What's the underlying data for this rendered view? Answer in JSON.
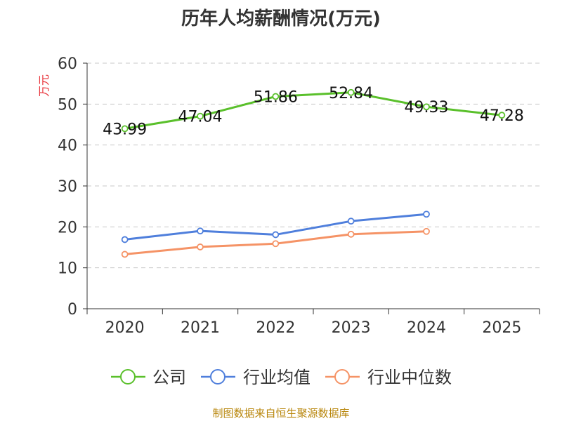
{
  "chart_data": {
    "type": "line",
    "title": "历年人均薪酬情况(万元)",
    "ylabel": "万元",
    "xlabel": "",
    "categories": [
      "2020",
      "2021",
      "2022",
      "2023",
      "2024",
      "2025"
    ],
    "ylim": [
      0,
      60
    ],
    "yticks": [
      0,
      10,
      20,
      30,
      40,
      50,
      60
    ],
    "grid": true,
    "legend_position": "bottom",
    "series": [
      {
        "name": "公司",
        "color": "#5ac02b",
        "values": [
          43.99,
          47.04,
          51.86,
          52.84,
          49.33,
          47.28
        ],
        "labels": [
          "43.99",
          "47.04",
          "51.86",
          "52.84",
          "49.33",
          "47.28"
        ]
      },
      {
        "name": "行业均值",
        "color": "#4f7fdc",
        "values": [
          16.9,
          19.0,
          18.1,
          21.4,
          23.1,
          null
        ],
        "labels": []
      },
      {
        "name": "行业中位数",
        "color": "#f59366",
        "values": [
          13.3,
          15.1,
          15.9,
          18.2,
          18.9,
          null
        ],
        "labels": []
      }
    ]
  },
  "source": "制图数据来自恒生聚源数据库"
}
